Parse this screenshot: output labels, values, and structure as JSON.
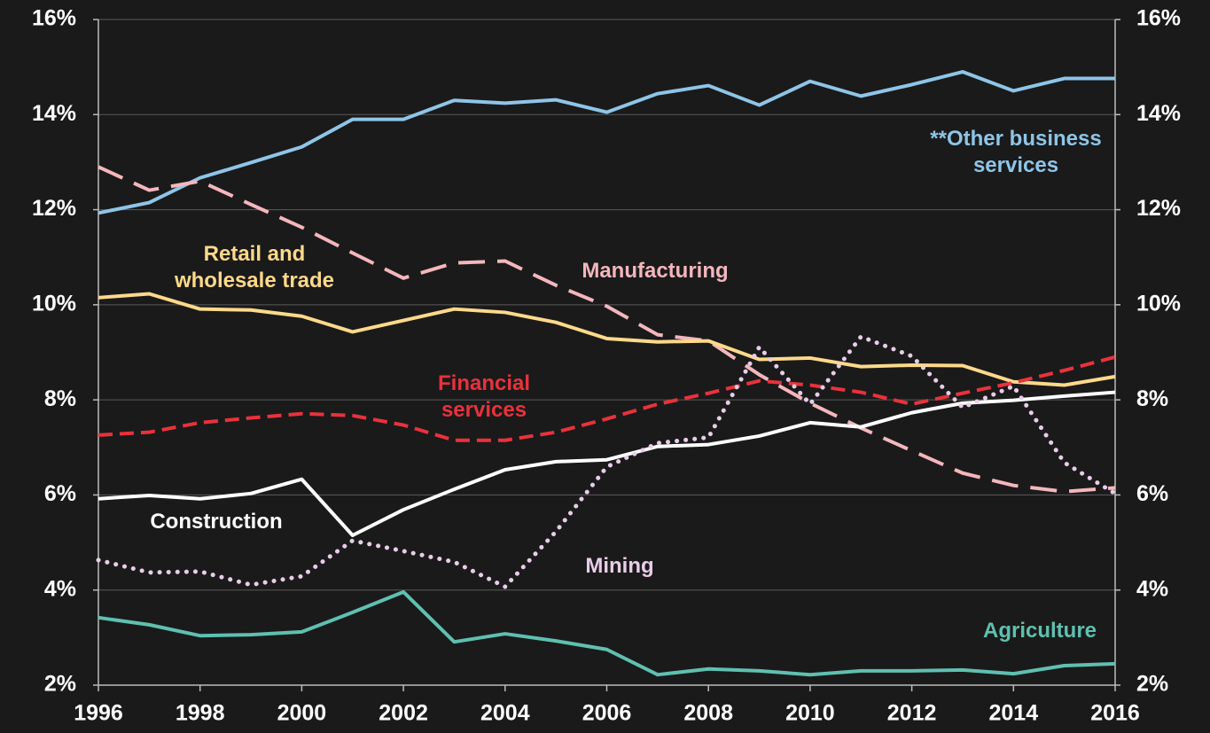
{
  "chart_data": {
    "type": "line",
    "x": [
      1996,
      1997,
      1998,
      1999,
      2000,
      2001,
      2002,
      2003,
      2004,
      2005,
      2006,
      2007,
      2008,
      2009,
      2010,
      2011,
      2012,
      2013,
      2014,
      2015,
      2016
    ],
    "xlim": [
      1996,
      2016
    ],
    "xticks": [
      1996,
      1998,
      2000,
      2002,
      2004,
      2006,
      2008,
      2010,
      2012,
      2014,
      2016
    ],
    "ylim": [
      2,
      16
    ],
    "yticks": [
      {
        "value": 2,
        "label": "2%"
      },
      {
        "value": 4,
        "label": "4%"
      },
      {
        "value": 6,
        "label": "6%"
      },
      {
        "value": 8,
        "label": "8%"
      },
      {
        "value": 10,
        "label": "10%"
      },
      {
        "value": 12,
        "label": "12%"
      },
      {
        "value": 14,
        "label": "14%"
      },
      {
        "value": 16,
        "label": "16%"
      }
    ],
    "y2lim": [
      2,
      16
    ],
    "y2ticks": [
      {
        "value": 2,
        "label": "2%"
      },
      {
        "value": 4,
        "label": "4%"
      },
      {
        "value": 6,
        "label": "6%"
      },
      {
        "value": 8,
        "label": "8%"
      },
      {
        "value": 10,
        "label": "10%"
      },
      {
        "value": 12,
        "label": "12%"
      },
      {
        "value": 14,
        "label": "14%"
      },
      {
        "value": 16,
        "label": "16%"
      }
    ],
    "grid": true,
    "series": [
      {
        "name": "**Other business services",
        "color": "#8ec5e8",
        "line_style": "solid",
        "values": [
          11.93,
          12.15,
          12.67,
          12.99,
          13.32,
          13.9,
          13.9,
          14.3,
          14.24,
          14.31,
          14.05,
          14.44,
          14.61,
          14.2,
          14.7,
          14.39,
          14.63,
          14.9,
          14.5,
          14.76,
          14.76
        ]
      },
      {
        "name": "Manufacturing",
        "color": "#f4b6bd",
        "line_style": "long-dash",
        "values": [
          12.9,
          12.41,
          12.6,
          12.11,
          11.63,
          11.09,
          10.56,
          10.88,
          10.92,
          10.41,
          9.97,
          9.37,
          9.24,
          8.53,
          7.93,
          7.41,
          6.93,
          6.46,
          6.2,
          6.07,
          6.15
        ]
      },
      {
        "name": "Retail and wholesale trade",
        "color": "#fdd98a",
        "line_style": "solid",
        "values": [
          10.15,
          10.23,
          9.91,
          9.89,
          9.76,
          9.43,
          9.67,
          9.91,
          9.84,
          9.63,
          9.29,
          9.22,
          9.24,
          8.85,
          8.88,
          8.7,
          8.73,
          8.72,
          8.38,
          8.31,
          8.49
        ]
      },
      {
        "name": "Financial services",
        "color": "#e8323c",
        "line_style": "dash",
        "values": [
          7.26,
          7.32,
          7.52,
          7.62,
          7.71,
          7.67,
          7.47,
          7.15,
          7.15,
          7.32,
          7.6,
          7.91,
          8.14,
          8.4,
          8.31,
          8.16,
          7.91,
          8.14,
          8.36,
          8.62,
          8.9
        ]
      },
      {
        "name": "Construction",
        "color": "#ffffff",
        "line_style": "solid",
        "values": [
          5.92,
          5.99,
          5.92,
          6.03,
          6.33,
          5.15,
          5.69,
          6.12,
          6.53,
          6.7,
          6.74,
          7.02,
          7.06,
          7.24,
          7.52,
          7.43,
          7.73,
          7.93,
          7.99,
          8.08,
          8.16
        ]
      },
      {
        "name": "Mining",
        "color": "#e8cde8",
        "line_style": "dotted",
        "values": [
          4.63,
          4.37,
          4.39,
          4.11,
          4.29,
          5.04,
          4.82,
          4.59,
          4.07,
          5.23,
          6.59,
          7.09,
          7.21,
          9.11,
          7.91,
          9.33,
          8.92,
          7.84,
          8.29,
          6.68,
          6.03
        ]
      },
      {
        "name": "Agriculture",
        "color": "#5fc0b0",
        "line_style": "solid",
        "values": [
          3.42,
          3.27,
          3.04,
          3.06,
          3.12,
          3.53,
          3.96,
          2.91,
          3.08,
          2.93,
          2.75,
          2.22,
          2.34,
          2.3,
          2.22,
          2.3,
          2.3,
          2.32,
          2.24,
          2.41,
          2.45
        ]
      }
    ]
  }
}
